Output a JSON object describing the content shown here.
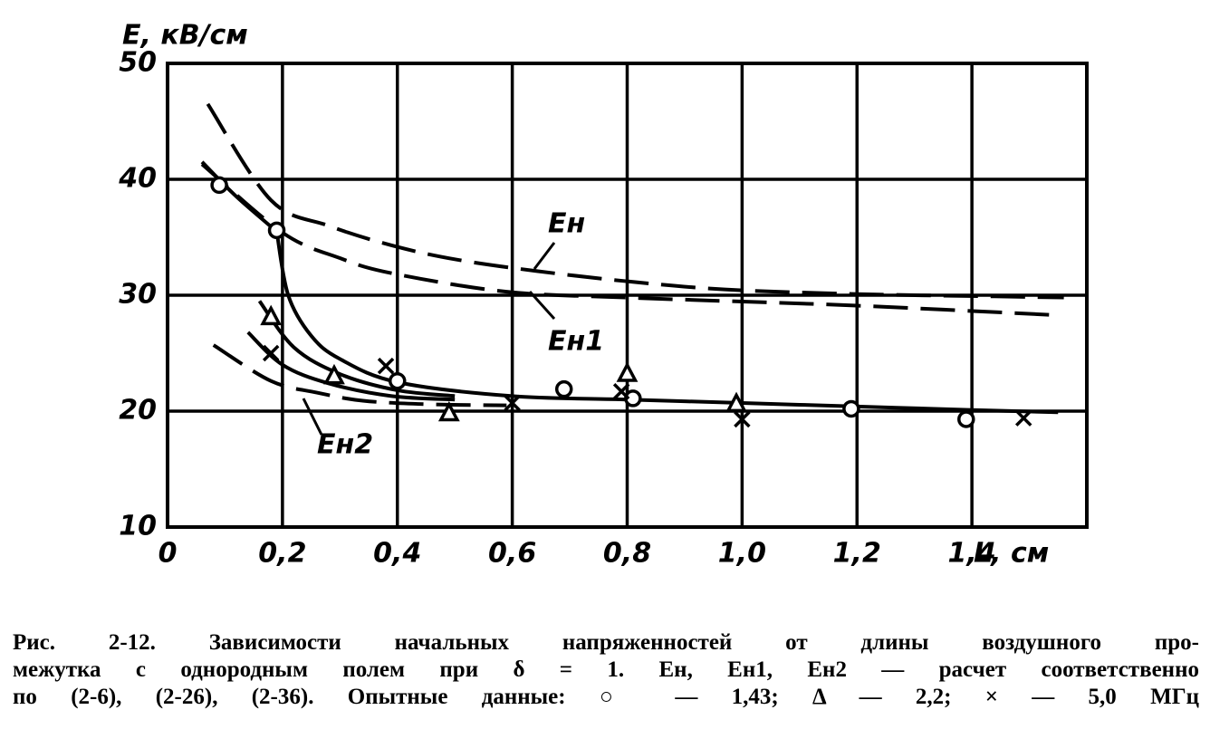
{
  "chart_data": {
    "type": "line",
    "y_label": "E, кВ/см",
    "x_label": "L, см",
    "xlim": [
      0,
      1.6
    ],
    "ylim": [
      10,
      50
    ],
    "xticks": [
      0,
      {
        "value": 0.2,
        "label": "0,2"
      },
      {
        "value": 0.4,
        "label": "0,4"
      },
      {
        "value": 0.6,
        "label": "0,6"
      },
      {
        "value": 0.8,
        "label": "0,8"
      },
      {
        "value": 1.0,
        "label": "1,0"
      },
      {
        "value": 1.2,
        "label": "1,2"
      },
      {
        "value": 1.4,
        "label": "1,4"
      }
    ],
    "yticks": [
      10,
      20,
      30,
      40,
      50
    ],
    "grid": true,
    "color": "#000000",
    "series": [
      {
        "x": [
          0.07,
          0.18,
          0.28,
          0.39,
          0.5,
          0.64,
          0.8,
          0.97,
          1.2,
          1.44,
          1.56
        ],
        "values": [
          46.5,
          38.2,
          36,
          34.3,
          33.1,
          32.1,
          31.2,
          30.5,
          30.1,
          29.9,
          29.8
        ],
        "dash": true
      },
      {
        "x": [
          0.06,
          0.2,
          0.3,
          0.39,
          0.59,
          0.8,
          0.97,
          1.2,
          1.54
        ],
        "values": [
          41.3,
          35.4,
          33.2,
          31.9,
          30.3,
          29.8,
          29.5,
          29.1,
          28.3
        ],
        "dash": true
      },
      {
        "x": [
          0.08,
          0.18,
          0.26,
          0.34,
          0.45,
          0.59
        ],
        "values": [
          25.7,
          22.6,
          21.6,
          20.9,
          20.6,
          20.5
        ],
        "dash": true
      },
      {
        "x": [
          0.06,
          0.12,
          0.19
        ],
        "values": [
          41.5,
          38.5,
          35.5
        ],
        "dash": false
      },
      {
        "x": [
          0.19,
          0.21,
          0.25,
          0.3,
          0.4,
          0.6,
          0.8,
          1.0,
          1.2,
          1.4,
          1.55
        ],
        "values": [
          35.5,
          30,
          26.5,
          24.5,
          22.5,
          21.3,
          21,
          20.7,
          20.4,
          20.1,
          19.9
        ],
        "dash": false
      },
      {
        "x": [
          0.16,
          0.22,
          0.3,
          0.4,
          0.5
        ],
        "values": [
          29.5,
          25.5,
          23.2,
          21.8,
          21.3
        ],
        "dash": false
      },
      {
        "x": [
          0.14,
          0.2,
          0.28,
          0.39,
          0.5
        ],
        "values": [
          26.8,
          24,
          22.4,
          21.3,
          21
        ],
        "dash": false
      },
      {
        "x": [
          0.09,
          0.19,
          0.4,
          0.69,
          0.81,
          1.19,
          1.39
        ],
        "values": [
          39.5,
          35.6,
          22.6,
          21.9,
          21.1,
          20.2,
          19.3
        ],
        "marker": "circle"
      },
      {
        "x": [
          0.18,
          0.29,
          0.49,
          0.8,
          0.99
        ],
        "values": [
          28.1,
          23.0,
          19.8,
          23.2,
          20.6
        ],
        "marker": "triangle"
      },
      {
        "x": [
          0.18,
          0.38,
          0.6,
          0.79,
          1.0,
          1.49
        ],
        "values": [
          25,
          23.9,
          20.7,
          21.7,
          19.3,
          19.4
        ],
        "marker": "cross"
      }
    ],
    "annotations": [
      "Eн",
      "Eн1",
      "Eн2"
    ],
    "caption": [
      "Рис. 2-12. Зависимости начальных напряженностей от длины воздушного про-",
      "межутка с однородным полем при δ = 1. Eн, Eн1, Eн2 — расчет соответственно",
      "по (2-6), (2-26), (2-36). Опытные данные: ○ — 1,43; Δ — 2,2; × — 5,0 МГц"
    ]
  }
}
